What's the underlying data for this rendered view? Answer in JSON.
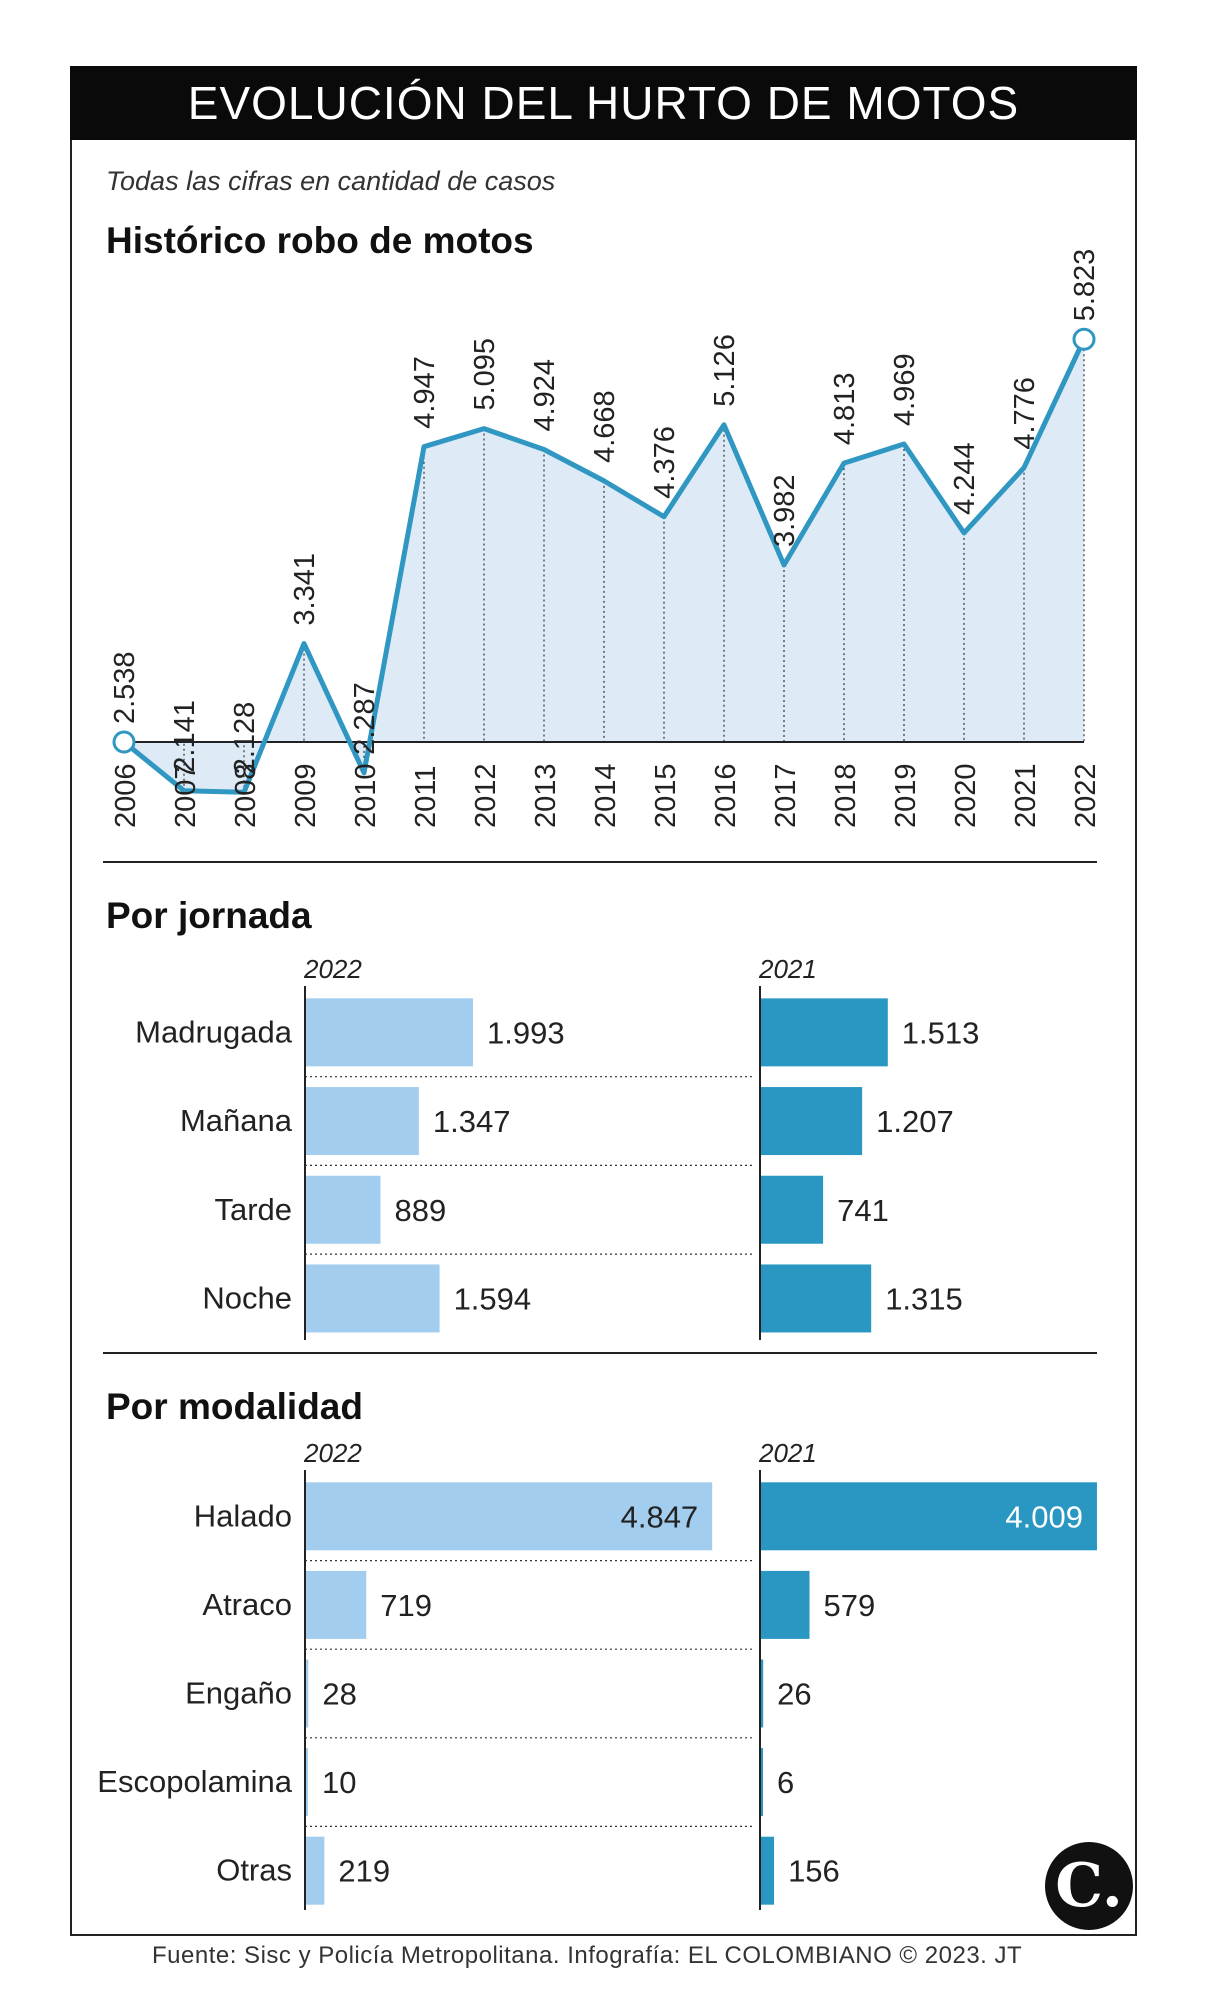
{
  "header": {
    "title": "EVOLUCIÓN DEL HURTO DE MOTOS",
    "subtitle": "Todas las cifras en cantidad de casos"
  },
  "colors": {
    "line": "#2f97c1",
    "area": "#deebf7",
    "bar_2022": "#a3cdee",
    "bar_2021": "#2a97c3"
  },
  "chart_data": [
    {
      "type": "area",
      "title": "Histórico robo de motos",
      "x": [
        2006,
        2007,
        2008,
        2009,
        2010,
        2011,
        2012,
        2013,
        2014,
        2015,
        2016,
        2017,
        2018,
        2019,
        2020,
        2021,
        2022
      ],
      "values": [
        2538,
        2141,
        2128,
        3341,
        2287,
        4947,
        5095,
        4924,
        4668,
        4376,
        5126,
        3982,
        4813,
        4969,
        4244,
        4776,
        5823
      ],
      "labels": [
        "2.538",
        "2.141",
        "2.128",
        "3.341",
        "2.287",
        "4.947",
        "5.095",
        "4.924",
        "4.668",
        "4.376",
        "5.126",
        "3.982",
        "4.813",
        "4.969",
        "4.244",
        "4.776",
        "5.823"
      ],
      "highlighted": [
        2006,
        2022
      ]
    },
    {
      "type": "bar",
      "title": "Por jornada",
      "categories": [
        "Madrugada",
        "Mañana",
        "Tarde",
        "Noche"
      ],
      "series": [
        {
          "name": "2022",
          "values": [
            1993,
            1347,
            889,
            1594
          ],
          "labels": [
            "1.993",
            "1.347",
            "889",
            "1.594"
          ]
        },
        {
          "name": "2021",
          "values": [
            1513,
            1207,
            741,
            1315
          ],
          "labels": [
            "1.513",
            "1.207",
            "741",
            "1.315"
          ]
        }
      ]
    },
    {
      "type": "bar",
      "title": "Por modalidad",
      "categories": [
        "Halado",
        "Atraco",
        "Engaño",
        "Escopolamina",
        "Otras"
      ],
      "series": [
        {
          "name": "2022",
          "values": [
            4847,
            719,
            28,
            10,
            219
          ],
          "labels": [
            "4.847",
            "719",
            "28",
            "10",
            "219"
          ]
        },
        {
          "name": "2021",
          "values": [
            4009,
            579,
            26,
            6,
            156
          ],
          "labels": [
            "4.009",
            "579",
            "26",
            "6",
            "156"
          ]
        }
      ]
    }
  ],
  "footer": {
    "source": "Fuente: Sisc y Policía Metropolitana. Infografía: EL COLOMBIANO © 2023. JT",
    "logo": "C."
  }
}
